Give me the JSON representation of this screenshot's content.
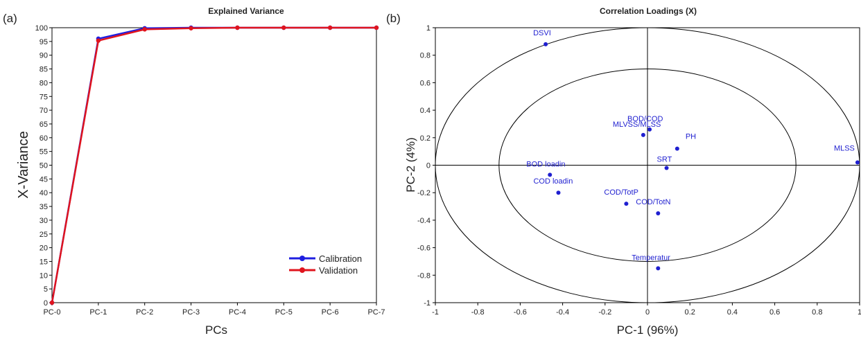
{
  "panel_a_label": "(a)",
  "panel_b_label": "(b)",
  "chart_data": [
    {
      "type": "line",
      "title": "Explained Variance",
      "xlabel": "PCs",
      "ylabel": "X-Variance",
      "categories": [
        "PC-0",
        "PC-1",
        "PC-2",
        "PC-3",
        "PC-4",
        "PC-5",
        "PC-6",
        "PC-7"
      ],
      "yticks": [
        "0",
        "5",
        "10",
        "15",
        "20",
        "25",
        "30",
        "35",
        "40",
        "45",
        "50",
        "55",
        "60",
        "65",
        "70",
        "75",
        "80",
        "85",
        "90",
        "95",
        "100"
      ],
      "ylim": [
        0,
        100
      ],
      "grid": false,
      "legend_position": "bottom-right",
      "series": [
        {
          "name": "Calibration",
          "color": "#1f1fe0",
          "values": [
            0,
            96,
            99.8,
            100,
            100,
            100,
            100,
            100
          ]
        },
        {
          "name": "Validation",
          "color": "#e0141e",
          "values": [
            0,
            95.3,
            99.4,
            99.8,
            100,
            100,
            100,
            100
          ]
        }
      ]
    },
    {
      "type": "scatter",
      "title": "Correlation Loadings (X)",
      "xlabel": "PC-1 (96%)",
      "ylabel": "PC-2 (4%)",
      "xlim": [
        -1,
        1
      ],
      "ylim": [
        -1,
        1
      ],
      "xticks": [
        "-1",
        "-0.8",
        "-0.6",
        "-0.4",
        "-0.2",
        "0",
        "0.2",
        "0.4",
        "0.6",
        "0.8",
        "1"
      ],
      "yticks": [
        "1",
        "0.8",
        "0.6",
        "0.4",
        "0.2",
        "0",
        "-0.2",
        "-0.4",
        "-0.6",
        "-0.8",
        "-1"
      ],
      "ellipse_radii": [
        1,
        0.7
      ],
      "point_color": "#1f1fd0",
      "points": [
        {
          "label": "DSVI",
          "x": -0.48,
          "y": 0.88
        },
        {
          "label": "BOD/COD",
          "x": 0.01,
          "y": 0.26
        },
        {
          "label": "MLVSS/MLSS",
          "x": -0.02,
          "y": 0.22
        },
        {
          "label": "PH",
          "x": 0.14,
          "y": 0.12
        },
        {
          "label": "SRT",
          "x": 0.09,
          "y": -0.02
        },
        {
          "label": "MLSS",
          "x": 0.99,
          "y": 0.02
        },
        {
          "label": "BOD loadin",
          "x": -0.46,
          "y": -0.07
        },
        {
          "label": "COD loadin",
          "x": -0.42,
          "y": -0.2
        },
        {
          "label": "COD/TotP",
          "x": -0.1,
          "y": -0.28
        },
        {
          "label": "COD/TotN",
          "x": 0.05,
          "y": -0.35
        },
        {
          "label": "Temperatur",
          "x": 0.05,
          "y": -0.75
        }
      ]
    }
  ]
}
